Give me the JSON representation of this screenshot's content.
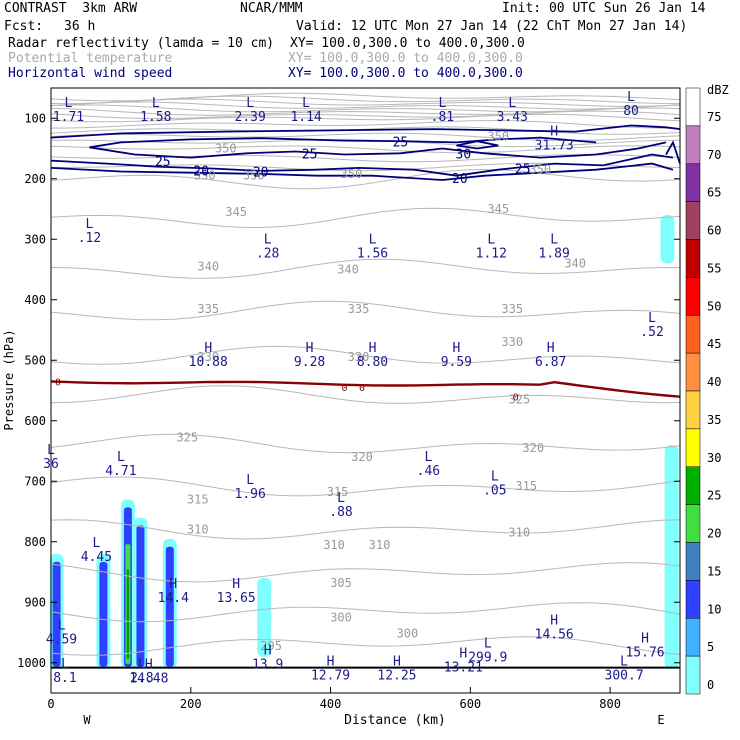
{
  "header": {
    "model": "CONTRAST  3km ARW",
    "org": "NCAR/MMM",
    "init": "Init: 00 UTC Sun 26 Jan 14",
    "fcst_label": "Fcst:",
    "fcst_value": "36 h",
    "valid": "Valid: 12 UTC Mon 27 Jan 14 (22 ChT Mon 27 Jan 14)",
    "field1": "Radar reflectivity (lamda = 10 cm)",
    "field1_xy": "XY= 100.0,300.0 to 400.0,300.0",
    "field2": "Potential temperature",
    "field2_xy": "XY= 100.0,300.0 to 400.0,300.0",
    "field3": "Horizontal wind speed",
    "field3_xy": "XY= 100.0,300.0 to 400.0,300.0"
  },
  "chart_data": {
    "type": "cross-section",
    "xlabel": "Distance (km)",
    "ylabel": "Pressure (hPa)",
    "xlim": [
      0,
      900
    ],
    "ylim": [
      1050,
      50
    ],
    "x_ticks": [
      "0",
      "200",
      "400",
      "600",
      "800"
    ],
    "y_ticks": [
      "100",
      "200",
      "300",
      "400",
      "500",
      "600",
      "700",
      "800",
      "900",
      "1000"
    ],
    "x_end_labels": {
      "left": "W",
      "right": "E"
    },
    "colorbar": {
      "unit": "dBZ",
      "levels": [
        "75",
        "70",
        "65",
        "60",
        "55",
        "50",
        "45",
        "40",
        "35",
        "30",
        "25",
        "20",
        "15",
        "10",
        "5",
        "0"
      ],
      "colors": [
        "#ffffff",
        "#c080c0",
        "#8030a0",
        "#a04060",
        "#c00000",
        "#ff0000",
        "#ff6020",
        "#ff9040",
        "#ffd040",
        "#ffff00",
        "#00b000",
        "#40e040",
        "#4080c0",
        "#3040ff",
        "#40b0ff",
        "#80ffff"
      ]
    },
    "theta_labels": [
      {
        "x": 250,
        "p": 150,
        "text": "350"
      },
      {
        "x": 640,
        "p": 130,
        "text": "350"
      },
      {
        "x": 220,
        "p": 195,
        "text": "350"
      },
      {
        "x": 290,
        "p": 195,
        "text": "350"
      },
      {
        "x": 430,
        "p": 192,
        "text": "350"
      },
      {
        "x": 700,
        "p": 185,
        "text": "350"
      },
      {
        "x": 265,
        "p": 255,
        "text": "345"
      },
      {
        "x": 640,
        "p": 250,
        "text": "345"
      },
      {
        "x": 225,
        "p": 345,
        "text": "340"
      },
      {
        "x": 425,
        "p": 350,
        "text": "340"
      },
      {
        "x": 750,
        "p": 340,
        "text": "340"
      },
      {
        "x": 225,
        "p": 415,
        "text": "335"
      },
      {
        "x": 440,
        "p": 415,
        "text": "335"
      },
      {
        "x": 660,
        "p": 415,
        "text": "335"
      },
      {
        "x": 225,
        "p": 495,
        "text": "330"
      },
      {
        "x": 440,
        "p": 495,
        "text": "330"
      },
      {
        "x": 660,
        "p": 470,
        "text": "330"
      },
      {
        "x": 670,
        "p": 565,
        "text": "325"
      },
      {
        "x": 195,
        "p": 628,
        "text": "325"
      },
      {
        "x": 445,
        "p": 660,
        "text": "320"
      },
      {
        "x": 690,
        "p": 645,
        "text": "320"
      },
      {
        "x": 410,
        "p": 718,
        "text": "315"
      },
      {
        "x": 680,
        "p": 708,
        "text": "315"
      },
      {
        "x": 210,
        "p": 730,
        "text": "315"
      },
      {
        "x": 210,
        "p": 780,
        "text": "310"
      },
      {
        "x": 405,
        "p": 805,
        "text": "310"
      },
      {
        "x": 470,
        "p": 805,
        "text": "310"
      },
      {
        "x": 670,
        "p": 785,
        "text": "310"
      },
      {
        "x": 415,
        "p": 868,
        "text": "305"
      },
      {
        "x": 415,
        "p": 925,
        "text": "300"
      },
      {
        "x": 510,
        "p": 952,
        "text": "300"
      },
      {
        "x": 315,
        "p": 972,
        "text": "295"
      }
    ],
    "extrema_labels": [
      {
        "kind": "L",
        "x": 25,
        "p": 85,
        "value": "1.71"
      },
      {
        "kind": "L",
        "x": 150,
        "p": 85,
        "value": "1.58"
      },
      {
        "kind": "L",
        "x": 285,
        "p": 85,
        "value": "2.39"
      },
      {
        "kind": "L",
        "x": 365,
        "p": 85,
        "value": "1.14"
      },
      {
        "kind": "L",
        "x": 560,
        "p": 85,
        "value": ".81"
      },
      {
        "kind": "L",
        "x": 660,
        "p": 85,
        "value": "3.43"
      },
      {
        "kind": "L",
        "x": 830,
        "p": 75,
        "value": "80"
      },
      {
        "kind": "H",
        "x": 720,
        "p": 132,
        "value": "31.73"
      },
      {
        "kind": "L",
        "x": 55,
        "p": 285,
        "value": ".12"
      },
      {
        "kind": "L",
        "x": 310,
        "p": 310,
        "value": ".28"
      },
      {
        "kind": "L",
        "x": 460,
        "p": 310,
        "value": "1.56"
      },
      {
        "kind": "L",
        "x": 630,
        "p": 310,
        "value": "1.12"
      },
      {
        "kind": "L",
        "x": 720,
        "p": 310,
        "value": "1.89"
      },
      {
        "kind": "L",
        "x": 860,
        "p": 440,
        "value": ".52"
      },
      {
        "kind": "H",
        "x": 225,
        "p": 490,
        "value": "10.88"
      },
      {
        "kind": "H",
        "x": 370,
        "p": 490,
        "value": "9.28"
      },
      {
        "kind": "H",
        "x": 460,
        "p": 490,
        "value": "8.80"
      },
      {
        "kind": "H",
        "x": 580,
        "p": 490,
        "value": "9.59"
      },
      {
        "kind": "H",
        "x": 715,
        "p": 490,
        "value": "6.87"
      },
      {
        "kind": "L",
        "x": 100,
        "p": 670,
        "value": "4.71"
      },
      {
        "kind": "L",
        "x": 540,
        "p": 670,
        "value": ".46"
      },
      {
        "kind": "L",
        "x": 635,
        "p": 702,
        "value": ".05"
      },
      {
        "kind": "L",
        "x": 285,
        "p": 708,
        "value": "1.96"
      },
      {
        "kind": "L",
        "x": 415,
        "p": 738,
        "value": ".88"
      },
      {
        "kind": "L",
        "x": 65,
        "p": 812,
        "value": "4.45"
      },
      {
        "kind": "H",
        "x": 175,
        "p": 880,
        "value": "14.4"
      },
      {
        "kind": "H",
        "x": 265,
        "p": 880,
        "value": "13.65"
      },
      {
        "kind": "H",
        "x": 720,
        "p": 940,
        "value": "14.56"
      },
      {
        "kind": "H",
        "x": 850,
        "p": 970,
        "value": "15.76"
      },
      {
        "kind": "H",
        "x": 310,
        "p": 990,
        "value": "13.9"
      },
      {
        "kind": "H",
        "x": 400,
        "p": 1008,
        "value": "12.79"
      },
      {
        "kind": "H",
        "x": 495,
        "p": 1008,
        "value": "12.25"
      },
      {
        "kind": "H",
        "x": 590,
        "p": 995,
        "value": "13.21"
      },
      {
        "kind": "H",
        "x": 140,
        "p": 1013,
        "value": "14.48"
      },
      {
        "kind": "L",
        "x": 15,
        "p": 948,
        "value": "4.59"
      },
      {
        "kind": "L",
        "x": 625,
        "p": 978,
        "value": "299.9"
      },
      {
        "kind": "L",
        "x": 820,
        "p": 1008,
        "value": "300.7"
      },
      {
        "kind": "L",
        "x": 0,
        "p": 658,
        "value": "36"
      },
      {
        "kind": "L",
        "x": 20,
        "p": 1012,
        "value": "8.1"
      },
      {
        "kind": "L",
        "x": 130,
        "p": 1012,
        "value": "2.8"
      }
    ],
    "wind_labels": [
      {
        "x": 500,
        "p": 140,
        "text": "25"
      },
      {
        "x": 160,
        "p": 172,
        "text": "25"
      },
      {
        "x": 370,
        "p": 160,
        "text": "25"
      },
      {
        "x": 590,
        "p": 160,
        "text": "30"
      },
      {
        "x": 675,
        "p": 185,
        "text": "25"
      },
      {
        "x": 215,
        "p": 188,
        "text": "20"
      },
      {
        "x": 300,
        "p": 190,
        "text": "20"
      },
      {
        "x": 585,
        "p": 200,
        "text": "20"
      }
    ],
    "zero_labels": [
      {
        "x": 10,
        "p": 535,
        "text": "0"
      },
      {
        "x": 420,
        "p": 544,
        "text": "0"
      },
      {
        "x": 445,
        "p": 544,
        "text": "0"
      },
      {
        "x": 665,
        "p": 560,
        "text": "0"
      }
    ],
    "radar_cells": [
      {
        "x": 8,
        "p_top": 820,
        "p_bot": 1010,
        "dbz": 20
      },
      {
        "x": 75,
        "p_top": 820,
        "p_bot": 1010,
        "dbz": 20
      },
      {
        "x": 110,
        "p_top": 730,
        "p_bot": 1010,
        "dbz": 30
      },
      {
        "x": 128,
        "p_top": 760,
        "p_bot": 1010,
        "dbz": 15
      },
      {
        "x": 170,
        "p_top": 795,
        "p_bot": 1010,
        "dbz": 15
      },
      {
        "x": 305,
        "p_top": 860,
        "p_bot": 990,
        "dbz": 10
      },
      {
        "x": 882,
        "p_top": 260,
        "p_bot": 340,
        "dbz": 10
      },
      {
        "x": 888,
        "p_top": 640,
        "p_bot": 1010,
        "dbz": 10
      }
    ]
  }
}
